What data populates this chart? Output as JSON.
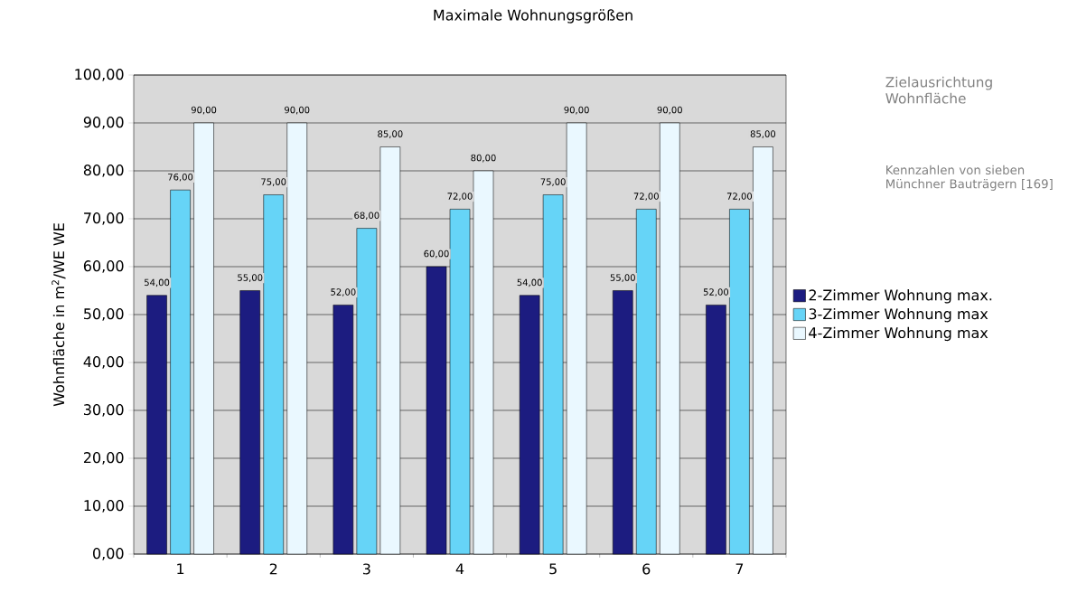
{
  "chart_data": {
    "type": "bar",
    "title": "Maximale Wohnungsgrößen",
    "ylabel": "Wohnfläche in m$^{2}$/WE WE",
    "annotations": [
      "Zielausrichtung Wohnfläche",
      "Kennzahlen von sieben Münchner Bauträgern [169]"
    ],
    "categories": [
      "1",
      "2",
      "3",
      "4",
      "5",
      "6",
      "7"
    ],
    "series": [
      {
        "name": "2-Zimmer Wohnung max.",
        "color": "#1c1c80",
        "values": [
          54,
          55,
          52,
          60,
          54,
          55,
          52
        ],
        "value_labels": [
          "54,00",
          "55,00",
          "52,00",
          "60,00",
          "54,00",
          "55,00",
          "52,00"
        ]
      },
      {
        "name": "3-Zimmer Wohnung max",
        "color": "#66d4f7",
        "values": [
          76,
          75,
          68,
          72,
          75,
          72,
          72
        ],
        "value_labels": [
          "76,00",
          "75,00",
          "68,00",
          "72,00",
          "75,00",
          "72,00",
          "72,00"
        ]
      },
      {
        "name": "4-Zimmer Wohnung max",
        "color": "#eaf8ff",
        "values": [
          90,
          90,
          85,
          80,
          90,
          90,
          85
        ],
        "value_labels": [
          "90,00",
          "90,00",
          "85,00",
          "80,00",
          "90,00",
          "90,00",
          "85,00"
        ]
      }
    ],
    "ylim": [
      0,
      100
    ],
    "yticks": [
      {
        "value": 0,
        "label": "0,00"
      },
      {
        "value": 10,
        "label": "10,00"
      },
      {
        "value": 20,
        "label": "20,00"
      },
      {
        "value": 30,
        "label": "30,00"
      },
      {
        "value": 40,
        "label": "40,00"
      },
      {
        "value": 50,
        "label": "50,00"
      },
      {
        "value": 60,
        "label": "60,00"
      },
      {
        "value": 70,
        "label": "70,00"
      },
      {
        "value": 80,
        "label": "80,00"
      },
      {
        "value": 90,
        "label": "90,00"
      },
      {
        "value": 100,
        "label": "100,00"
      }
    ],
    "grid": "y",
    "legend": "right"
  }
}
